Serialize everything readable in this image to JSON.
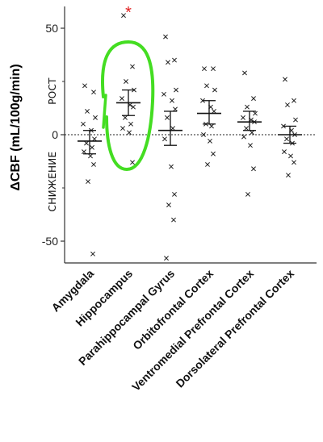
{
  "chart_data": {
    "type": "scatter",
    "title": "",
    "ylabel": "ΔCBF (mL/100g/min)",
    "xlabel": "",
    "ylim": [
      -60,
      60
    ],
    "yticks": [
      50,
      0,
      -50
    ],
    "reference_line": 0,
    "up_label": "РОСТ",
    "down_label": "СНИЖЕНИЕ",
    "significance_marker": "*",
    "significant_category": "Hippocampus",
    "highlight_color": "#44dd22",
    "star_color": "#e02020",
    "categories": [
      "Amygdala",
      "Hippocampus",
      "Parahippocampal Gyrus",
      "Orbitofrontal Cortex",
      "Ventromedial Prefrontal Cortex",
      "Dorsolateral Prefrontal Cortex"
    ],
    "groups": [
      {
        "category": "Amygdala",
        "mean": -3,
        "sem_low": -9,
        "sem_high": 2,
        "points": [
          23,
          20,
          11,
          8,
          5,
          2,
          -2,
          -4,
          -6,
          -8,
          -10,
          -14,
          -22,
          -56
        ]
      },
      {
        "category": "Hippocampus",
        "mean": 15,
        "sem_low": 9,
        "sem_high": 21,
        "points": [
          56,
          32,
          25,
          21,
          17,
          14,
          13,
          8,
          5,
          3,
          1,
          -13
        ]
      },
      {
        "category": "Parahippocampal Gyrus",
        "mean": 2,
        "sem_low": -5,
        "sem_high": 11,
        "points": [
          46,
          35,
          34,
          21,
          19,
          16,
          12,
          8,
          3,
          -2,
          -15,
          -28,
          -33,
          -40,
          -58
        ]
      },
      {
        "category": "Orbitofrontal Cortex",
        "mean": 10,
        "sem_low": 5,
        "sem_high": 16,
        "points": [
          31,
          31,
          23,
          21,
          16,
          13,
          11,
          5,
          4,
          0,
          -3,
          -9,
          -14
        ]
      },
      {
        "category": "Ventromedial Prefrontal Cortex",
        "mean": 6,
        "sem_low": 2,
        "sem_high": 11,
        "points": [
          29,
          17,
          13,
          10,
          8,
          7,
          6,
          3,
          1,
          -1,
          -5,
          -16,
          -28
        ]
      },
      {
        "category": "Dorsolateral Prefrontal Cortex",
        "mean": 0,
        "sem_low": -4,
        "sem_high": 4,
        "points": [
          26,
          16,
          14,
          7,
          4,
          2,
          0,
          -2,
          -4,
          -8,
          -10,
          -13,
          -19
        ]
      }
    ]
  }
}
